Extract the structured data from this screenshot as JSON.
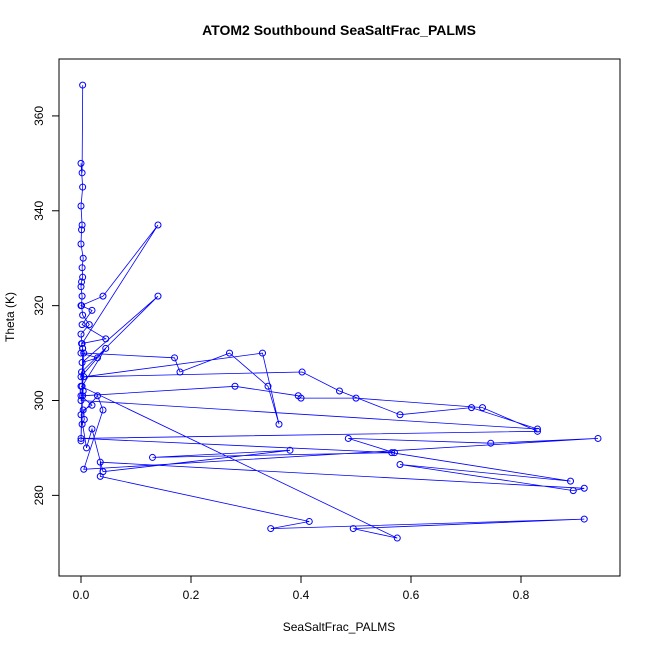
{
  "chart_data": {
    "type": "line",
    "title": "ATOM2 Southbound SeaSaltFrac_PALMS",
    "xlabel": "SeaSaltFrac_PALMS",
    "ylabel": "Theta (K)",
    "xlim": [
      -0.04,
      0.98
    ],
    "ylim": [
      263,
      372
    ],
    "x_ticks": [
      0.0,
      0.2,
      0.4,
      0.6,
      0.8
    ],
    "x_tick_labels": [
      "0.0",
      "0.2",
      "0.4",
      "0.6",
      "0.8"
    ],
    "y_ticks": [
      280,
      300,
      320,
      340,
      360
    ],
    "y_tick_labels": [
      "280",
      "300",
      "320",
      "340",
      "360"
    ],
    "grid": false,
    "series": [
      {
        "color": "#0000ff",
        "marker": "open-circle",
        "x": [
          0.003,
          0.002,
          0.0,
          0.003,
          0.0,
          0.002,
          0.001,
          0.0,
          0.004,
          0.002,
          0.003,
          0.001,
          0.0,
          0.002,
          0.001,
          0.003,
          0.015,
          0.0,
          0.002,
          0.14,
          0.04,
          0.0,
          0.02,
          0.002,
          0.045,
          0.001,
          0.003,
          0.0,
          0.03,
          0.002,
          0.14,
          0.001,
          0.0,
          0.045,
          0.002,
          0.004,
          0.0,
          0.02,
          0.004,
          0.006,
          0.002,
          0.003,
          0.0,
          0.005,
          0.17,
          0.18,
          0.27,
          0.34,
          0.36,
          0.33,
          0.005,
          0.402,
          0.47,
          0.58,
          0.71,
          0.83,
          0.0,
          0.003,
          0.28,
          0.395,
          0.4,
          0.5,
          0.73,
          0.83,
          0.0,
          0.57,
          0.486,
          0.745,
          0.94,
          0.005,
          0.04,
          0.03,
          0.0,
          0.01,
          0.02,
          0.04,
          0.38,
          0.13,
          0.565,
          0.89,
          0.58,
          0.895,
          0.915,
          0.035,
          0.035,
          0.415,
          0.345,
          0.915,
          0.495,
          0.575,
          0.0
        ],
        "y": [
          366.5,
          348,
          350,
          345,
          341,
          337,
          336,
          333,
          330,
          328,
          326,
          325,
          324,
          322,
          320,
          318,
          316,
          314,
          312,
          337,
          322,
          320,
          319,
          316,
          313,
          312,
          311,
          310,
          309,
          308,
          322,
          306,
          305,
          311,
          303,
          302,
          301,
          299,
          298,
          296,
          295,
          311,
          291.5,
          310,
          309,
          306,
          310,
          303,
          295,
          310,
          305,
          306,
          302,
          297,
          298.5,
          294,
          300,
          301,
          303,
          301,
          300.5,
          300.5,
          298.5,
          293.5,
          292,
          289,
          292,
          291,
          292,
          285.5,
          298,
          301,
          297,
          290,
          294,
          285,
          289.5,
          288,
          289,
          283,
          286.5,
          281,
          281.5,
          287,
          284,
          274.5,
          273,
          275,
          273,
          271,
          303
        ]
      }
    ]
  }
}
